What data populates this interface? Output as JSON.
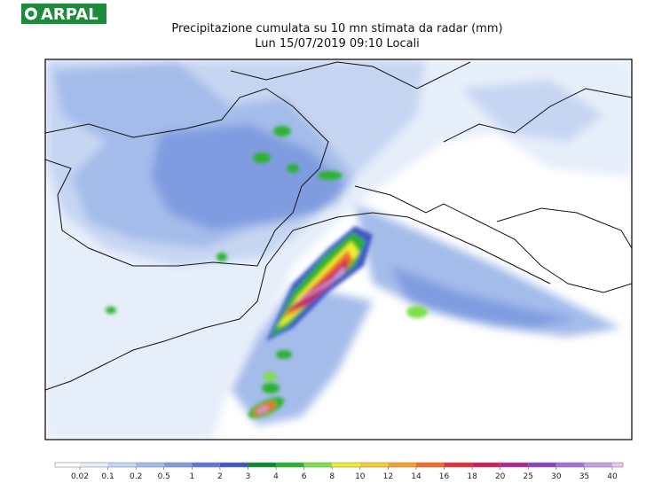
{
  "header": {
    "logo": "ARPAL",
    "title": "Precipitazione cumulata su 10 mn stimata da radar (mm)",
    "subtitle": "Lun 15/07/2019 09:10 Locali"
  },
  "legend": {
    "labels": [
      "0.02",
      "0.1",
      "0.2",
      "0.5",
      "1",
      "2",
      "3",
      "4",
      "6",
      "8",
      "10",
      "12",
      "14",
      "16",
      "18",
      "20",
      "25",
      "30",
      "35",
      "40"
    ],
    "colors": [
      "#ffffff",
      "#e6eefa",
      "#c6d6f2",
      "#a4bcea",
      "#7f9ce0",
      "#5a78d4",
      "#3f55c6",
      "#0b8a2a",
      "#29b22e",
      "#7ee04a",
      "#f0f030",
      "#f8cc30",
      "#f8a030",
      "#f06a2a",
      "#e0303a",
      "#c8205a",
      "#a82a90",
      "#8a40c0",
      "#a070d8",
      "#c8a0e0",
      "#e8c8e8"
    ]
  }
}
